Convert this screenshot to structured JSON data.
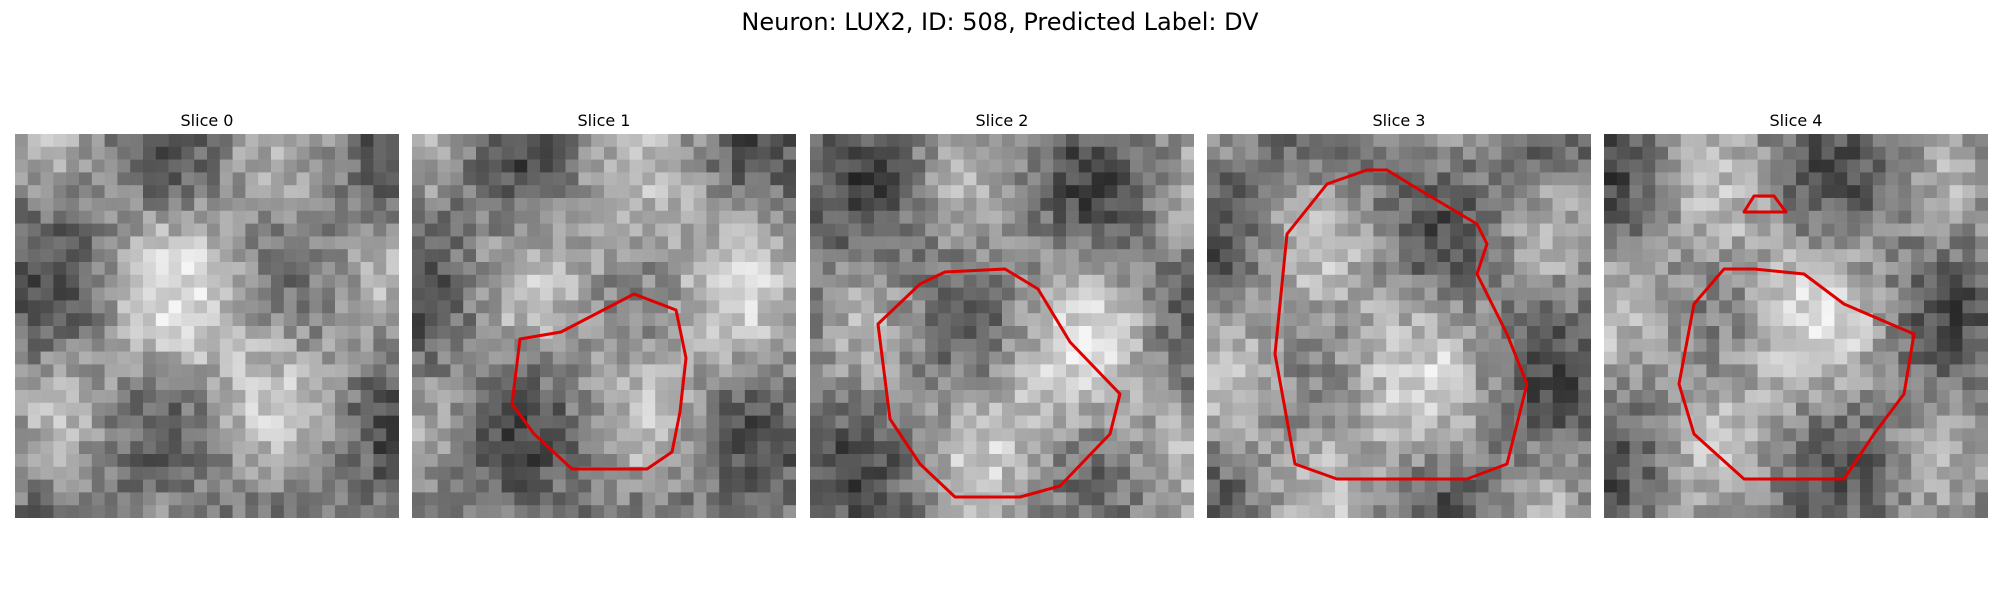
{
  "figure": {
    "title": "Neuron: LUX2, ID: 508, Predicted Label: DV",
    "contour_color": "#e00000",
    "image_colormap": "gray",
    "slices": [
      {
        "title": "Slice 0",
        "seed": 11
      },
      {
        "title": "Slice 1",
        "seed": 23
      },
      {
        "title": "Slice 2",
        "seed": 37
      },
      {
        "title": "Slice 3",
        "seed": 41
      },
      {
        "title": "Slice 4",
        "seed": 59
      }
    ]
  }
}
